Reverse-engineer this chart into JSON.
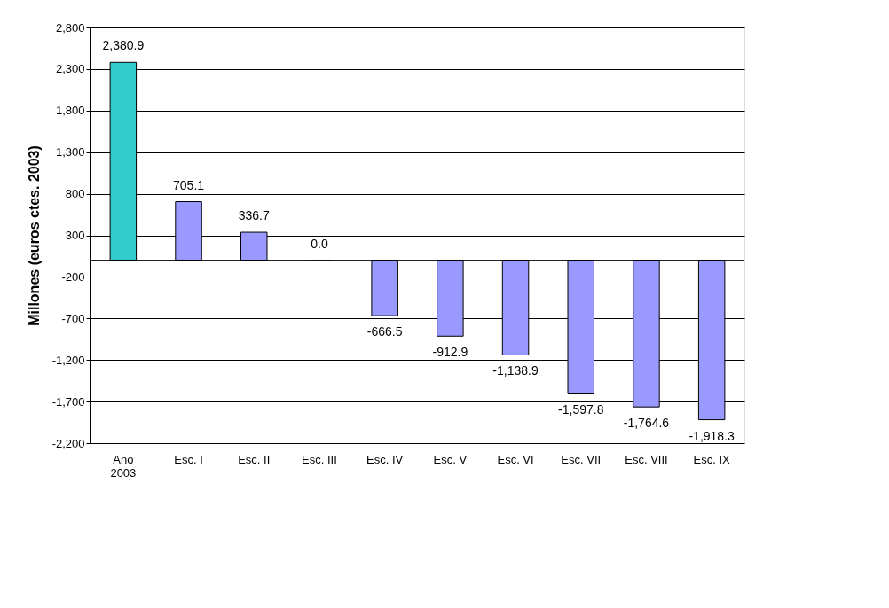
{
  "chart_data": {
    "type": "bar",
    "ylabel": "Millones (euros ctes. 2003)",
    "categories": [
      "Año\n2003",
      "Esc. I",
      "Esc. II",
      "Esc. III",
      "Esc. IV",
      "Esc. V",
      "Esc. VI",
      "Esc. VII",
      "Esc. VIII",
      "Esc. IX"
    ],
    "values": [
      2380.9,
      705.1,
      336.7,
      0.0,
      -666.5,
      -912.9,
      -1138.9,
      -1597.8,
      -1764.6,
      -1918.3
    ],
    "colors": [
      "#33cccc",
      "#9999ff",
      "#9999ff",
      "#9999ff",
      "#9999ff",
      "#9999ff",
      "#9999ff",
      "#9999ff",
      "#9999ff",
      "#9999ff"
    ],
    "ylim": [
      -2200,
      2800
    ],
    "yticks": [
      {
        "value": -2200,
        "label": "-2,200"
      },
      {
        "value": -1700,
        "label": "-1,700"
      },
      {
        "value": -1200,
        "label": "-1,200"
      },
      {
        "value": -700,
        "label": "-700"
      },
      {
        "value": -200,
        "label": "-200"
      },
      300,
      800,
      {
        "value": 1300,
        "label": "1,300"
      },
      {
        "value": 1800,
        "label": "1,800"
      },
      {
        "value": 2300,
        "label": "2,300"
      },
      {
        "value": 2800,
        "label": "2,800"
      }
    ],
    "value_labels": [
      "2,380.9",
      "705.1",
      "336.7",
      "0.0",
      "-666.5",
      "-912.9",
      "-1,138.9",
      "-1,597.8",
      "-1,764.6",
      "-1,918.3"
    ],
    "grid": "y"
  }
}
